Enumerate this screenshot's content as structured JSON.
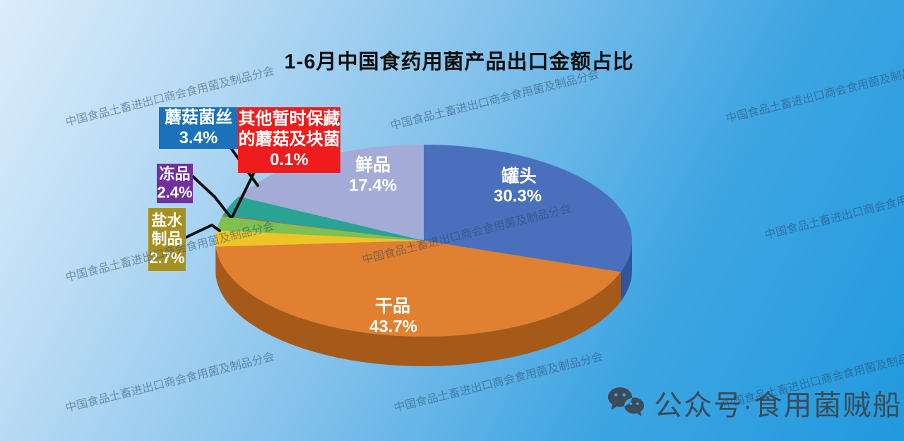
{
  "chart_data": {
    "type": "pie",
    "projection": "3d",
    "title": "1-6月中国食药用菌产品出口金额占比",
    "start_angle_deg": 0,
    "direction": "clockwise",
    "series": [
      {
        "name": "罐头",
        "value": 30.3,
        "color": "#4a70bd",
        "side_color": "#32549c"
      },
      {
        "name": "干品",
        "value": 43.7,
        "color": "#e08030",
        "side_color": "#a55a1a"
      },
      {
        "name": "盐水制品",
        "value": 2.7,
        "color": "#eec526",
        "side_color": "#bd9a12"
      },
      {
        "name": "冻品",
        "value": 2.4,
        "color": "#7fc04e",
        "side_color": "#5e9338"
      },
      {
        "name": "其他暂时保藏的蘑菇及块菌",
        "value": 0.1,
        "color": "#e03030",
        "side_color": "#a82020"
      },
      {
        "name": "蘑菇菌丝",
        "value": 3.4,
        "color": "#29a394",
        "side_color": "#1d7a6f"
      },
      {
        "name": "鲜品",
        "value": 17.4,
        "color": "#a3abd6",
        "side_color": "#7c86bb"
      }
    ]
  },
  "callouts": [
    {
      "label": "蘑菇菌丝",
      "value": "3.4%",
      "bg": "#1b72ba"
    },
    {
      "label": "其他暂时保藏的蘑菇及块菌",
      "value": "0.1%",
      "bg": "#ee1c1c"
    },
    {
      "label": "冻品",
      "value": "2.4%",
      "bg": "#7030a0"
    },
    {
      "label": "盐水制品",
      "value": "2.7%",
      "bg": "#a8901f"
    }
  ],
  "watermark": {
    "text": "中国食品土畜进出口商会食用菌及制品分会"
  },
  "footer": {
    "icon": "wechat-logo",
    "account_text": "公众号·食用菌贼船"
  },
  "colors": {
    "background_top_left": "#dcedfb",
    "background_bottom_right": "#219ade",
    "callout_line": "#0d0d0d",
    "pie_label_text": "#ffffff",
    "title_text": "#0e0e0e",
    "footer_text": "#3a4a58",
    "watermark_text": "rgba(42,68,100,0.5)"
  }
}
